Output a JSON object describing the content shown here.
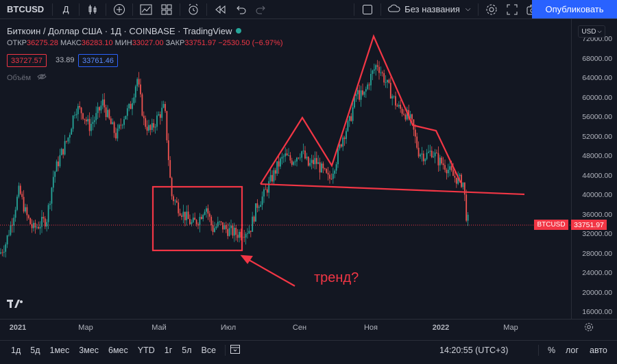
{
  "toolbar": {
    "symbol": "BTCUSD",
    "interval": "Д",
    "layout_name": "Без названия",
    "publish_label": "Опубликовать",
    "icons": [
      "candles-icon",
      "add-indicator-icon",
      "indicators-icon",
      "layout-grid-icon",
      "alert-icon",
      "replay-icon",
      "undo-icon",
      "redo-icon",
      "fullscreen-square-icon",
      "cloud-icon",
      "chevron-down-icon",
      "gear-icon",
      "fullscreen-icon",
      "camera-icon"
    ]
  },
  "legend": {
    "title": "Биткоин / Доллар США · 1Д · COINBASE · TradingView",
    "open_label": "ОТКР",
    "open_value": "36275.28",
    "high_label": "МАКС",
    "high_value": "36283.10",
    "low_label": "МИН",
    "low_value": "33027.00",
    "close_label": "ЗАКР",
    "close_value": "33751.97",
    "change": "−2530.50 (−6.97%)",
    "bid": "33727.57",
    "spread": "33.89",
    "ask": "33761.46",
    "volume_label": "Объём"
  },
  "price_axis": {
    "currency": "USD",
    "labels": [
      "72000.00",
      "68000.00",
      "64000.00",
      "60000.00",
      "56000.00",
      "52000.00",
      "48000.00",
      "44000.00",
      "40000.00",
      "36000.00",
      "32000.00",
      "28000.00",
      "24000.00",
      "20000.00",
      "16000.00"
    ],
    "current_price": "33751.97",
    "symbol_tag": "BTCUSD"
  },
  "time_axis": {
    "labels": [
      "2021",
      "Мар",
      "Май",
      "Июл",
      "Сен",
      "Ноя",
      "2022",
      "Мар"
    ]
  },
  "annotation": {
    "text": "тренд?"
  },
  "bottom_bar": {
    "ranges": [
      "1д",
      "5д",
      "1мес",
      "3мес",
      "6мес",
      "YTD",
      "1г",
      "5л",
      "Все"
    ],
    "clock": "14:20:55 (UTC+3)",
    "percent": "%",
    "log": "лог",
    "auto": "авто"
  },
  "colors": {
    "up": "#26a69a",
    "down": "#ef5350",
    "accent": "#2962ff",
    "drawing": "#f23645"
  }
}
